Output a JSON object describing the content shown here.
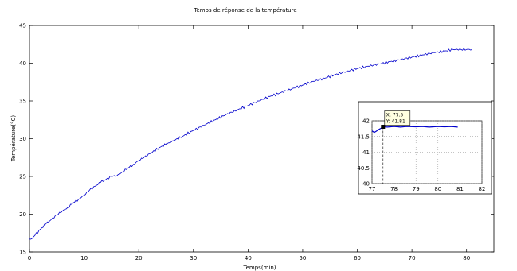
{
  "chart_data": [
    {
      "type": "line",
      "title": "Temps de réponse de la température",
      "xlabel": "Temps(min)",
      "ylabel": "Température(°C)",
      "xlim": [
        0,
        85
      ],
      "ylim": [
        15,
        45
      ],
      "xticks": [
        0,
        10,
        20,
        30,
        40,
        50,
        60,
        70,
        80
      ],
      "yticks": [
        15,
        20,
        25,
        30,
        35,
        40,
        45
      ],
      "grid": false,
      "line_color": "#0000cc",
      "series": [
        {
          "x": [
            0,
            0.5,
            1,
            2,
            3,
            4,
            5,
            6,
            7,
            8,
            9,
            10,
            11,
            12,
            13,
            14,
            15,
            16,
            17,
            18,
            19,
            20,
            22,
            24,
            26,
            28,
            30,
            32,
            34,
            36,
            38,
            40,
            42,
            44,
            46,
            48,
            50,
            52,
            54,
            56,
            58,
            60,
            62,
            64,
            66,
            68,
            70,
            72,
            74,
            76,
            77.5,
            78,
            79,
            80,
            81
          ],
          "y": [
            16.7,
            16.8,
            17.2,
            18.0,
            18.7,
            19.3,
            19.9,
            20.4,
            20.9,
            21.5,
            22.0,
            22.5,
            23.2,
            23.7,
            24.2,
            24.6,
            25.0,
            25.1,
            25.6,
            26.1,
            26.6,
            27.1,
            28.0,
            28.9,
            29.6,
            30.3,
            31.1,
            31.8,
            32.5,
            33.2,
            33.8,
            34.4,
            35.0,
            35.6,
            36.1,
            36.6,
            37.1,
            37.6,
            38.0,
            38.5,
            38.9,
            39.3,
            39.6,
            39.9,
            40.2,
            40.5,
            40.8,
            41.1,
            41.4,
            41.6,
            41.81,
            41.82,
            41.8,
            41.82,
            41.82
          ]
        }
      ]
    },
    {
      "type": "line",
      "title": "",
      "xlim": [
        77,
        82
      ],
      "ylim": [
        40,
        42
      ],
      "xticks": [
        77,
        78,
        79,
        80,
        81,
        82
      ],
      "yticks": [
        "40",
        "40.5",
        "41",
        "41.5",
        "42"
      ],
      "grid": true,
      "line_color": "#0000cc",
      "series": [
        {
          "x": [
            77.0,
            77.1,
            77.2,
            77.3,
            77.4,
            77.5,
            77.7,
            78.0,
            78.3,
            78.6,
            79.0,
            79.3,
            79.6,
            80.0,
            80.3,
            80.6,
            80.9
          ],
          "y": [
            41.68,
            41.63,
            41.67,
            41.72,
            41.76,
            41.81,
            41.8,
            41.82,
            41.8,
            41.82,
            41.81,
            41.82,
            41.8,
            41.82,
            41.81,
            41.82,
            41.8
          ]
        }
      ],
      "datatip": {
        "x_text": "X: 77.5",
        "y_text": "Y: 41.81",
        "x": 77.5,
        "y": 41.81
      }
    }
  ]
}
